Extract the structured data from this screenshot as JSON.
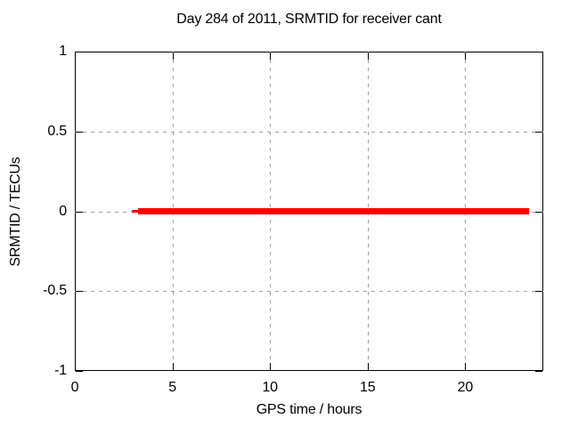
{
  "page": {
    "background": "#ffffff"
  },
  "chart_data": {
    "type": "line",
    "title": "Day 284 of 2011, SRMTID for receiver cant",
    "xlabel": "GPS time / hours",
    "ylabel": "SRMTID / TECUs",
    "xlim": [
      0,
      24
    ],
    "ylim": [
      -1,
      1
    ],
    "x_ticks": [
      0,
      5,
      10,
      15,
      20
    ],
    "x_tick_labels": [
      "0",
      "5",
      "10",
      "15",
      "20"
    ],
    "y_ticks": [
      1,
      0.5,
      0,
      -0.5,
      -1
    ],
    "y_tick_labels": [
      "1",
      "0.5",
      "0",
      "-0.5",
      "-1"
    ],
    "grid": true,
    "grid_style": "dashed",
    "legend": "none",
    "series": [
      {
        "name": "SRMTID",
        "color": "#ff0000",
        "style": "thick horizontal line",
        "y": 0,
        "x_start": 2.9,
        "x_end": 23.25,
        "segments": [
          {
            "x1": 2.9,
            "x2": 3.25,
            "thickness_px": 3
          },
          {
            "x1": 3.25,
            "x2": 23.25,
            "thickness_px": 7
          }
        ]
      }
    ],
    "colors": {
      "axis": "#000000",
      "grid": "#a0a0a0",
      "series": "#ff0000",
      "text": "#000000"
    }
  }
}
